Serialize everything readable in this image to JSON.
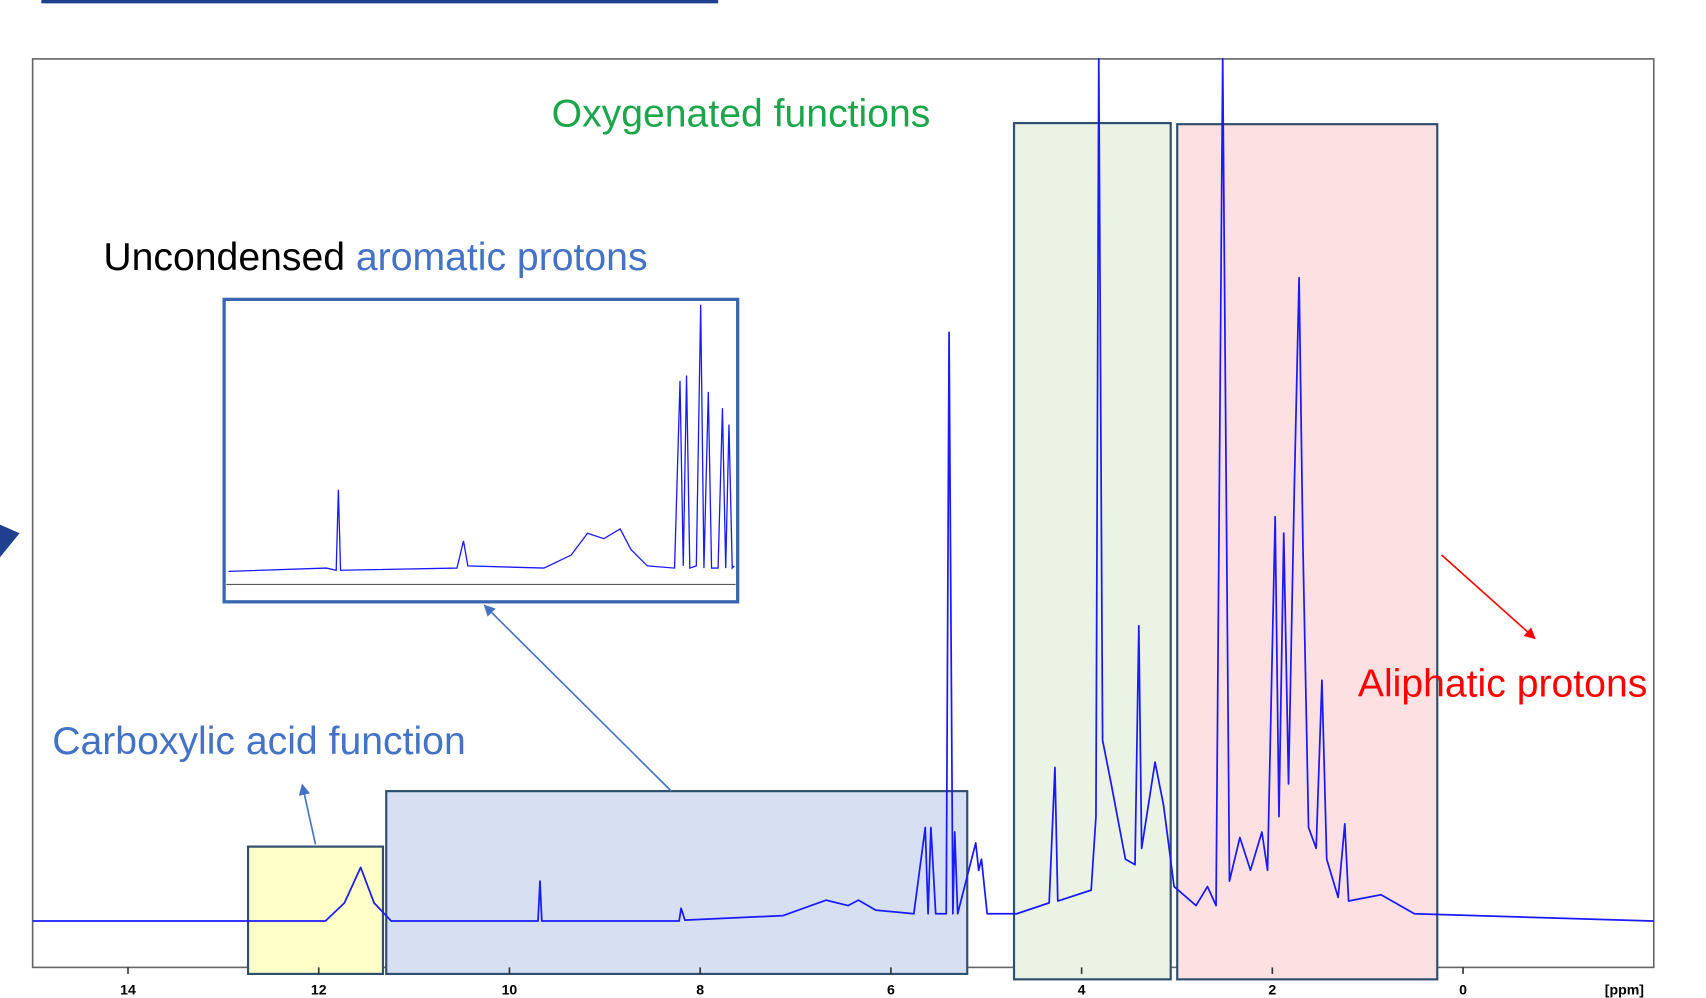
{
  "chart_data": {
    "type": "line",
    "annotations": [
      "Oxygenated functions",
      "Uncondensed",
      "aromatic protons",
      "Carboxylic acid function",
      "Aliphatic protons"
    ],
    "x_label": "[ppm]",
    "xlim": [
      15,
      -2
    ],
    "ylim": [
      0,
      100
    ],
    "xticks": [
      14,
      12,
      10,
      8,
      6,
      4,
      2,
      0
    ],
    "color": "#1a1aff",
    "x": [
      15.0,
      11.93,
      11.73,
      11.56,
      11.42,
      11.24,
      9.7,
      9.68,
      9.66,
      8.22,
      8.2,
      8.16,
      7.13,
      6.68,
      6.45,
      6.34,
      6.16,
      5.76,
      5.64,
      5.61,
      5.58,
      5.53,
      5.42,
      5.39,
      5.35,
      5.33,
      5.3,
      5.11,
      5.08,
      5.05,
      4.99,
      4.68,
      4.34,
      4.28,
      4.25,
      3.9,
      3.85,
      3.82,
      3.78,
      3.69,
      3.54,
      3.44,
      3.4,
      3.37,
      3.23,
      3.14,
      3.03,
      2.8,
      2.68,
      2.59,
      2.52,
      2.45,
      2.34,
      2.23,
      2.11,
      2.05,
      1.97,
      1.93,
      1.88,
      1.83,
      1.77,
      1.72,
      1.68,
      1.62,
      1.54,
      1.48,
      1.43,
      1.31,
      1.24,
      1.2,
      0.86,
      0.51,
      -2.0
    ],
    "values": [
      5.1,
      5.1,
      7.1,
      11.0,
      7.1,
      5.1,
      5.1,
      9.5,
      5.1,
      5.1,
      6.5,
      5.2,
      5.7,
      7.4,
      6.8,
      7.4,
      6.3,
      5.9,
      15.4,
      5.9,
      15.4,
      5.9,
      5.9,
      69.9,
      5.9,
      14.9,
      5.9,
      13.7,
      10.7,
      11.9,
      5.9,
      5.9,
      7.1,
      22.0,
      7.3,
      8.5,
      16.6,
      100,
      25.0,
      20.2,
      11.9,
      11.3,
      37.6,
      13.1,
      22.6,
      17.8,
      8.9,
      6.8,
      8.9,
      6.8,
      100,
      9.5,
      14.3,
      10.7,
      14.9,
      10.7,
      49.6,
      16.6,
      47.8,
      20.2,
      52.6,
      75.9,
      46.6,
      15.4,
      13.1,
      31.6,
      11.9,
      7.7,
      15.8,
      7.3,
      8.0,
      5.9,
      5.1
    ]
  }
}
